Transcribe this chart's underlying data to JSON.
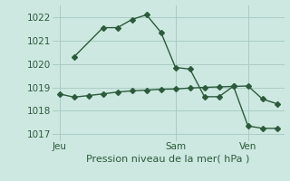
{
  "bg_color": "#cce8e0",
  "grid_color": "#aaccc4",
  "line_color": "#2d5a3d",
  "xlabel": "Pression niveau de la mer( hPa )",
  "ylim": [
    1016.7,
    1022.5
  ],
  "yticks": [
    1017,
    1018,
    1019,
    1020,
    1021,
    1022
  ],
  "xtick_labels": [
    "Jeu",
    "Sam",
    "Ven"
  ],
  "xtick_positions": [
    0,
    8,
    13
  ],
  "line1_x": [
    1,
    3,
    4,
    5,
    6,
    7,
    8,
    9,
    10,
    11,
    12,
    13,
    14,
    15
  ],
  "line1_y": [
    1020.3,
    1021.55,
    1021.55,
    1021.9,
    1022.1,
    1021.35,
    1019.85,
    1019.78,
    1018.6,
    1018.6,
    1019.05,
    1017.35,
    1017.25,
    1017.25
  ],
  "line2_x": [
    0,
    1,
    2,
    3,
    4,
    5,
    6,
    7,
    8,
    9,
    10,
    11,
    12,
    13,
    14,
    15
  ],
  "line2_y": [
    1018.72,
    1018.58,
    1018.65,
    1018.72,
    1018.8,
    1018.85,
    1018.88,
    1018.92,
    1018.93,
    1018.97,
    1019.0,
    1019.02,
    1019.04,
    1019.06,
    1018.5,
    1018.3
  ],
  "vline_x": [
    0,
    8,
    13
  ],
  "marker_size": 3.0,
  "fontsize_label": 8,
  "fontsize_tick": 7.5,
  "lw": 1.0
}
